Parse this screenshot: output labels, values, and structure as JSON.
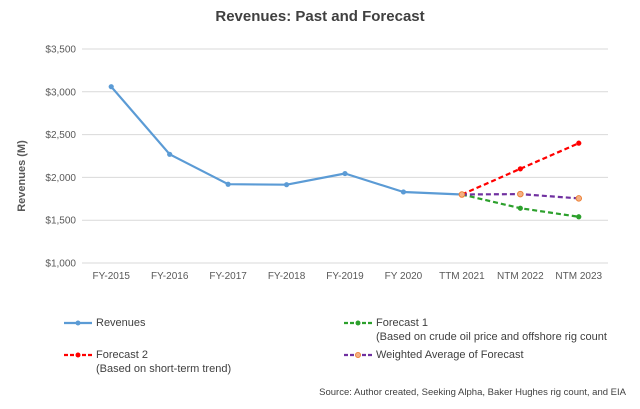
{
  "chart_data": {
    "type": "line",
    "title": "Revenues: Past and Forecast",
    "ylabel": "Revenues (M)",
    "xlabel": "",
    "categories": [
      "FY-2015",
      "FY-2016",
      "FY-2017",
      "FY-2018",
      "FY-2019",
      "FY 2020",
      "TTM 2021",
      "NTM 2022",
      "NTM 2023"
    ],
    "yticks": [
      "$1,000",
      "$1,500",
      "$2,000",
      "$2,500",
      "$3,000",
      "$3,500"
    ],
    "ytick_values": [
      1000,
      1500,
      2000,
      2500,
      3000,
      3500
    ],
    "ylim": [
      1000,
      3500
    ],
    "grid": true,
    "legend_position": "bottom",
    "series": [
      {
        "key": "revenues",
        "name": "Revenues",
        "color": "#5B9BD5",
        "style": "solid",
        "values": [
          3060,
          2270,
          1920,
          1915,
          2045,
          1830,
          1800,
          null,
          null
        ]
      },
      {
        "key": "f1",
        "name": "Forecast 1",
        "name_line2": "(Based on crude oil price and offshore rig count",
        "color": "#2CA02C",
        "style": "dashed",
        "marker_color": "#2CA02C",
        "values": [
          null,
          null,
          null,
          null,
          null,
          null,
          1800,
          1640,
          1540
        ]
      },
      {
        "key": "f2",
        "name": "Forecast 2",
        "name_line2": "(Based on short-term trend)",
        "color": "#FF0000",
        "style": "dashed",
        "marker_color": "#FF0000",
        "values": [
          null,
          null,
          null,
          null,
          null,
          null,
          1800,
          2100,
          2400
        ]
      },
      {
        "key": "wavg",
        "name": "Weighted Average of Forecast",
        "name_line2": "",
        "color": "#7030A0",
        "style": "dashed",
        "marker_color": "#F4B183",
        "values": [
          null,
          null,
          null,
          null,
          null,
          null,
          1800,
          1805,
          1755
        ]
      }
    ],
    "source": "Source: Author created, Seeking Alpha, Baker Hughes rig count, and EIA"
  }
}
